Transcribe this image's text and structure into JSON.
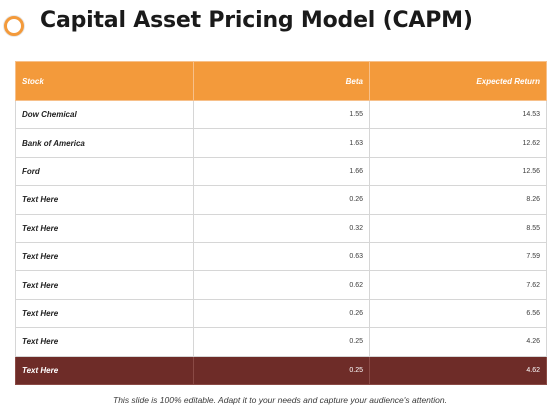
{
  "header": {
    "title": "Capital Asset Pricing Model (CAPM)",
    "icon": "circle-ring-icon"
  },
  "table": {
    "columns": [
      "Stock",
      "Beta",
      "Expected Return"
    ],
    "rows": [
      [
        "Dow Chemical",
        "1.55",
        "14.53"
      ],
      [
        "Bank of America",
        "1.63",
        "12.62"
      ],
      [
        "Ford",
        "1.66",
        "12.56"
      ],
      [
        "Text Here",
        "0.26",
        "8.26"
      ],
      [
        "Text Here",
        "0.32",
        "8.55"
      ],
      [
        "Text Here",
        "0.63",
        "7.59"
      ],
      [
        "Text Here",
        "0.62",
        "7.62"
      ],
      [
        "Text Here",
        "0.26",
        "6.56"
      ],
      [
        "Text Here",
        "0.25",
        "4.26"
      ],
      [
        "Text Here",
        "0.25",
        "4.62"
      ]
    ]
  },
  "footer": {
    "text": "This slide is 100% editable. Adapt it to your needs and capture your audience's attention."
  },
  "colors": {
    "accent": "#f39a3b",
    "highlight_row": "#6e2c28"
  }
}
